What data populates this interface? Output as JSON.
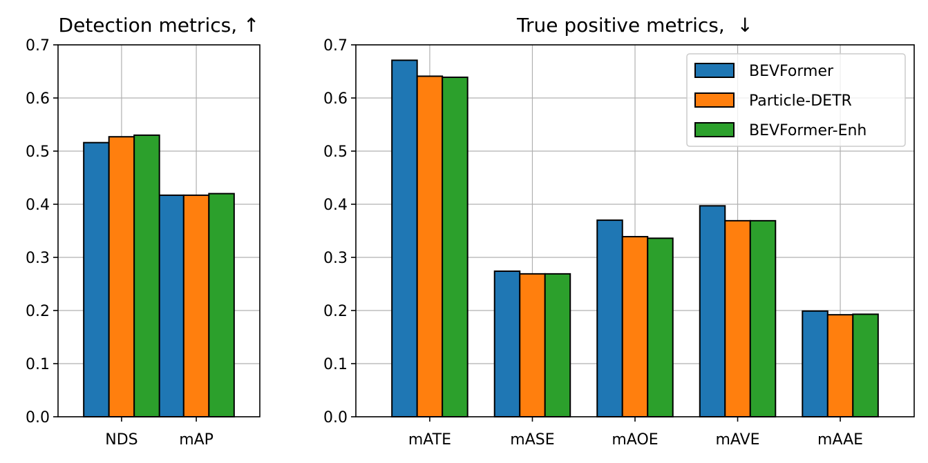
{
  "chart_data": [
    {
      "type": "bar",
      "title": "Detection metrics, ↑",
      "categories": [
        "NDS",
        "mAP"
      ],
      "series": [
        {
          "name": "BEVFormer",
          "values": [
            0.516,
            0.417
          ]
        },
        {
          "name": "Particle-DETR",
          "values": [
            0.527,
            0.417
          ]
        },
        {
          "name": "BEVFormer-Enh",
          "values": [
            0.53,
            0.42
          ]
        }
      ],
      "ylim": [
        0,
        0.7
      ],
      "yticks": [
        "0.0",
        "0.1",
        "0.2",
        "0.3",
        "0.4",
        "0.5",
        "0.6",
        "0.7"
      ],
      "xlabel": "",
      "ylabel": "",
      "grid": true,
      "legend": false
    },
    {
      "type": "bar",
      "title": "True positive metrics,  ↓",
      "categories": [
        "mATE",
        "mASE",
        "mAOE",
        "mAVE",
        "mAAE"
      ],
      "series": [
        {
          "name": "BEVFormer",
          "values": [
            0.671,
            0.274,
            0.37,
            0.397,
            0.199
          ]
        },
        {
          "name": "Particle-DETR",
          "values": [
            0.641,
            0.269,
            0.339,
            0.369,
            0.192
          ]
        },
        {
          "name": "BEVFormer-Enh",
          "values": [
            0.639,
            0.269,
            0.336,
            0.369,
            0.193
          ]
        }
      ],
      "ylim": [
        0,
        0.7
      ],
      "yticks": [
        "0.0",
        "0.1",
        "0.2",
        "0.3",
        "0.4",
        "0.5",
        "0.6",
        "0.7"
      ],
      "xlabel": "",
      "ylabel": "",
      "grid": true,
      "legend": true,
      "legend_position": "top-right"
    }
  ],
  "colors": {
    "BEVFormer": "#1f77b4",
    "Particle-DETR": "#ff7f0e",
    "BEVFormer-Enh": "#2ca02c"
  }
}
